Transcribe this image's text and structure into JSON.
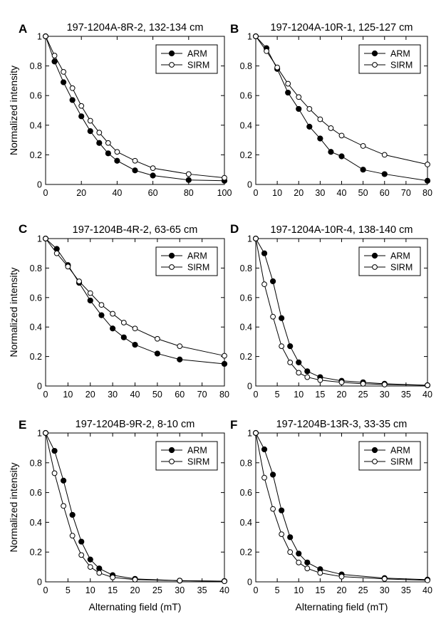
{
  "shared_labels": {
    "ylabel": "Normalized intensity",
    "xlabel": "Alternating field (mT)"
  },
  "chart_data": [
    {
      "type": "line",
      "panel": "A",
      "title": "197-1204A-8R-2, 132-134 cm",
      "xlim": [
        0,
        100
      ],
      "ylim": [
        0,
        1
      ],
      "xticks": [
        0,
        20,
        40,
        60,
        80,
        100
      ],
      "yticks": [
        0,
        0.2,
        0.4,
        0.6,
        0.8,
        1
      ],
      "xticklabels": [
        "0",
        "20",
        "40",
        "60",
        "80",
        "100"
      ],
      "yticklabels": [
        "0",
        "0.2",
        "0.4",
        "0.6",
        "0.8",
        "1"
      ],
      "show_xlabel": false,
      "show_ylabel": true,
      "legend_position": "top-right",
      "series": [
        {
          "name": "ARM",
          "marker": "filled-circle",
          "x": [
            0,
            5,
            10,
            15,
            20,
            25,
            30,
            35,
            40,
            50,
            60,
            80,
            100
          ],
          "y": [
            1.0,
            0.83,
            0.69,
            0.57,
            0.46,
            0.36,
            0.28,
            0.21,
            0.16,
            0.095,
            0.06,
            0.03,
            0.025
          ]
        },
        {
          "name": "SIRM",
          "marker": "open-circle",
          "x": [
            0,
            5,
            10,
            15,
            20,
            25,
            30,
            35,
            40,
            50,
            60,
            80,
            100
          ],
          "y": [
            1.0,
            0.87,
            0.76,
            0.65,
            0.53,
            0.43,
            0.35,
            0.28,
            0.22,
            0.16,
            0.11,
            0.07,
            0.045
          ]
        }
      ]
    },
    {
      "type": "line",
      "panel": "B",
      "title": "197-1204A-10R-1, 125-127 cm",
      "xlim": [
        0,
        80
      ],
      "ylim": [
        0,
        1
      ],
      "xticks": [
        0,
        10,
        20,
        30,
        40,
        50,
        60,
        70,
        80
      ],
      "yticks": [
        0,
        0.2,
        0.4,
        0.6,
        0.8,
        1
      ],
      "xticklabels": [
        "0",
        "10",
        "20",
        "30",
        "40",
        "50",
        "60",
        "70",
        "80"
      ],
      "yticklabels": [
        "0",
        "0.2",
        "0.4",
        "0.6",
        "0.8",
        "1"
      ],
      "show_xlabel": false,
      "show_ylabel": false,
      "legend_position": "top-right",
      "series": [
        {
          "name": "ARM",
          "marker": "filled-circle",
          "x": [
            0,
            5,
            10,
            15,
            20,
            25,
            30,
            35,
            40,
            50,
            60,
            80
          ],
          "y": [
            1.0,
            0.92,
            0.78,
            0.62,
            0.51,
            0.39,
            0.31,
            0.22,
            0.19,
            0.1,
            0.07,
            0.025
          ]
        },
        {
          "name": "SIRM",
          "marker": "open-circle",
          "x": [
            0,
            5,
            10,
            15,
            20,
            25,
            30,
            35,
            40,
            50,
            60,
            80
          ],
          "y": [
            1.0,
            0.9,
            0.79,
            0.68,
            0.59,
            0.51,
            0.44,
            0.38,
            0.33,
            0.26,
            0.2,
            0.135
          ]
        }
      ]
    },
    {
      "type": "line",
      "panel": "C",
      "title": "197-1204B-4R-2, 63-65 cm",
      "xlim": [
        0,
        80
      ],
      "ylim": [
        0,
        1
      ],
      "xticks": [
        0,
        10,
        20,
        30,
        40,
        50,
        60,
        70,
        80
      ],
      "yticks": [
        0,
        0.2,
        0.4,
        0.6,
        0.8,
        1
      ],
      "xticklabels": [
        "0",
        "10",
        "20",
        "30",
        "40",
        "50",
        "60",
        "70",
        "80"
      ],
      "yticklabels": [
        "0",
        "0.2",
        "0.4",
        "0.6",
        "0.8",
        "1"
      ],
      "show_xlabel": false,
      "show_ylabel": true,
      "legend_position": "top-right",
      "series": [
        {
          "name": "ARM",
          "marker": "filled-circle",
          "x": [
            0,
            5,
            10,
            15,
            20,
            25,
            30,
            35,
            40,
            50,
            60,
            80
          ],
          "y": [
            1.0,
            0.93,
            0.82,
            0.7,
            0.58,
            0.48,
            0.39,
            0.33,
            0.28,
            0.22,
            0.18,
            0.15
          ]
        },
        {
          "name": "SIRM",
          "marker": "open-circle",
          "x": [
            0,
            5,
            10,
            15,
            20,
            25,
            30,
            35,
            40,
            50,
            60,
            80
          ],
          "y": [
            1.0,
            0.9,
            0.81,
            0.71,
            0.63,
            0.55,
            0.49,
            0.43,
            0.39,
            0.32,
            0.27,
            0.205
          ]
        }
      ]
    },
    {
      "type": "line",
      "panel": "D",
      "title": "197-1204A-10R-4, 138-140 cm",
      "xlim": [
        0,
        40
      ],
      "ylim": [
        0,
        1
      ],
      "xticks": [
        0,
        5,
        10,
        15,
        20,
        25,
        30,
        35,
        40
      ],
      "yticks": [
        0,
        0.2,
        0.4,
        0.6,
        0.8,
        1
      ],
      "xticklabels": [
        "0",
        "5",
        "10",
        "15",
        "20",
        "25",
        "30",
        "35",
        "40"
      ],
      "yticklabels": [
        "0",
        "0.2",
        "0.4",
        "0.6",
        "0.8",
        "1"
      ],
      "show_xlabel": false,
      "show_ylabel": false,
      "legend_position": "top-right",
      "series": [
        {
          "name": "ARM",
          "marker": "filled-circle",
          "x": [
            0,
            2,
            4,
            6,
            8,
            10,
            12,
            15,
            20,
            25,
            30,
            40
          ],
          "y": [
            1.0,
            0.9,
            0.71,
            0.46,
            0.27,
            0.16,
            0.1,
            0.06,
            0.035,
            0.025,
            0.015,
            0.005
          ]
        },
        {
          "name": "SIRM",
          "marker": "open-circle",
          "x": [
            0,
            2,
            4,
            6,
            8,
            10,
            12,
            15,
            20,
            25,
            30,
            40
          ],
          "y": [
            1.0,
            0.69,
            0.47,
            0.27,
            0.16,
            0.09,
            0.06,
            0.04,
            0.025,
            0.015,
            0.01,
            0.005
          ]
        }
      ]
    },
    {
      "type": "line",
      "panel": "E",
      "title": "197-1204B-9R-2, 8-10 cm",
      "xlim": [
        0,
        40
      ],
      "ylim": [
        0,
        1
      ],
      "xticks": [
        0,
        5,
        10,
        15,
        20,
        25,
        30,
        35,
        40
      ],
      "yticks": [
        0,
        0.2,
        0.4,
        0.6,
        0.8,
        1
      ],
      "xticklabels": [
        "0",
        "5",
        "10",
        "15",
        "20",
        "25",
        "30",
        "35",
        "40"
      ],
      "yticklabels": [
        "0",
        "0.2",
        "0.4",
        "0.6",
        "0.8",
        "1"
      ],
      "show_xlabel": true,
      "show_ylabel": true,
      "legend_position": "top-right",
      "series": [
        {
          "name": "ARM",
          "marker": "filled-circle",
          "x": [
            0,
            2,
            4,
            6,
            8,
            10,
            12,
            15,
            20,
            30,
            40
          ],
          "y": [
            1.0,
            0.88,
            0.68,
            0.45,
            0.27,
            0.15,
            0.09,
            0.045,
            0.02,
            0.008,
            0.005
          ]
        },
        {
          "name": "SIRM",
          "marker": "open-circle",
          "x": [
            0,
            2,
            4,
            6,
            8,
            10,
            12,
            15,
            20,
            30,
            40
          ],
          "y": [
            1.0,
            0.73,
            0.51,
            0.31,
            0.18,
            0.1,
            0.06,
            0.03,
            0.015,
            0.008,
            0.004
          ]
        }
      ]
    },
    {
      "type": "line",
      "panel": "F",
      "title": "197-1204B-13R-3, 33-35 cm",
      "xlim": [
        0,
        40
      ],
      "ylim": [
        0,
        1
      ],
      "xticks": [
        0,
        5,
        10,
        15,
        20,
        25,
        30,
        35,
        40
      ],
      "yticks": [
        0,
        0.2,
        0.4,
        0.6,
        0.8,
        1
      ],
      "xticklabels": [
        "0",
        "5",
        "10",
        "15",
        "20",
        "25",
        "30",
        "35",
        "40"
      ],
      "yticklabels": [
        "0",
        "0.2",
        "0.4",
        "0.6",
        "0.8",
        "1"
      ],
      "show_xlabel": true,
      "show_ylabel": false,
      "legend_position": "top-right",
      "series": [
        {
          "name": "ARM",
          "marker": "filled-circle",
          "x": [
            0,
            2,
            4,
            6,
            8,
            10,
            12,
            15,
            20,
            30,
            40
          ],
          "y": [
            1.0,
            0.89,
            0.72,
            0.48,
            0.3,
            0.19,
            0.13,
            0.085,
            0.05,
            0.025,
            0.015
          ]
        },
        {
          "name": "SIRM",
          "marker": "open-circle",
          "x": [
            0,
            2,
            4,
            6,
            8,
            10,
            12,
            15,
            20,
            30,
            40
          ],
          "y": [
            1.0,
            0.7,
            0.49,
            0.32,
            0.2,
            0.13,
            0.09,
            0.06,
            0.035,
            0.02,
            0.01
          ]
        }
      ]
    }
  ]
}
